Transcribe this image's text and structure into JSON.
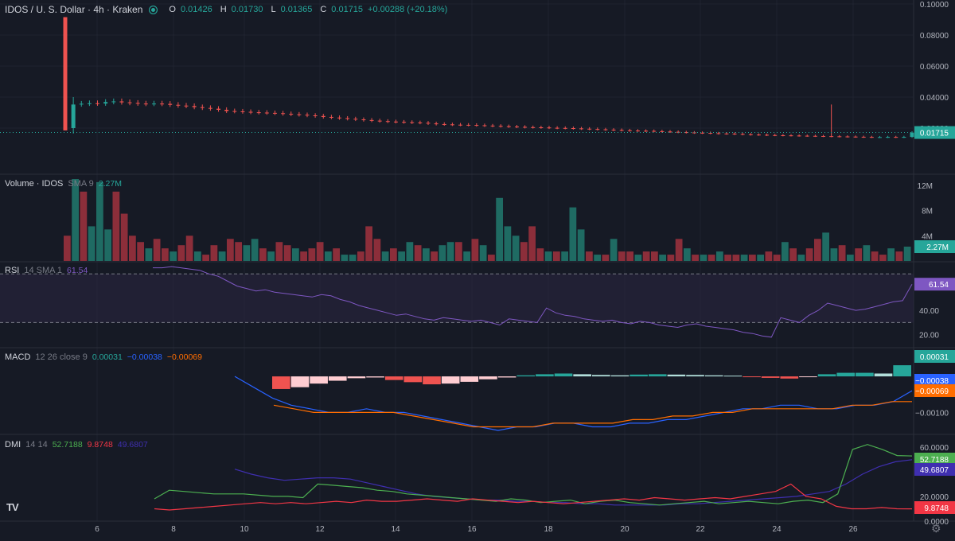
{
  "header": {
    "symbol": "IDOS / U. S. Dollar · 4h · Kraken",
    "o_key": "O",
    "o_val": "0.01426",
    "h_key": "H",
    "h_val": "0.01730",
    "l_key": "L",
    "l_val": "0.01365",
    "c_key": "C",
    "c_val": "0.01715",
    "change": "+0.00288 (+20.18%)"
  },
  "volume_legend": {
    "label": "Volume · IDOS",
    "param": "SMA 9",
    "value": "2.27M"
  },
  "rsi_legend": {
    "label": "RSI",
    "param": "14 SMA 1",
    "value": "61.54"
  },
  "macd_legend": {
    "label": "MACD",
    "param": "12 26 close 9",
    "v1": "0.00031",
    "v2": "−0.00038",
    "v3": "−0.00069"
  },
  "dmi_legend": {
    "label": "DMI",
    "param": "14 14",
    "v1": "52.7188",
    "v2": "9.8748",
    "v3": "49.6807"
  },
  "logo": "TV",
  "colors": {
    "up": "#26a69a",
    "down": "#ef5350",
    "rsi": "#7e57c2",
    "macd": "#2962ff",
    "signal": "#ff6d00",
    "plus_di": "#4caf50",
    "minus_di": "#f23645",
    "adx": "#3f2fb0"
  },
  "chart_data": [
    {
      "type": "candlestick",
      "title": "IDOS / U. S. Dollar · 4h · Kraken",
      "x_ticks": [
        "6",
        "8",
        "10",
        "12",
        "14",
        "16",
        "18",
        "20",
        "22",
        "24",
        "26"
      ],
      "y_ticks": [
        "0.10000",
        "0.08000",
        "0.06000",
        "0.04000",
        "0.02000"
      ],
      "ylim": [
        0.0,
        0.1
      ],
      "last_price": "0.01715",
      "close_series": [
        0.0185,
        0.0352,
        0.0357,
        0.036,
        0.0358,
        0.0368,
        0.0372,
        0.0366,
        0.0362,
        0.0358,
        0.0356,
        0.0358,
        0.0356,
        0.035,
        0.0345,
        0.0342,
        0.0335,
        0.033,
        0.0325,
        0.0318,
        0.031,
        0.0308,
        0.0305,
        0.0302,
        0.03,
        0.0298,
        0.0296,
        0.0292,
        0.0289,
        0.0286,
        0.0282,
        0.0278,
        0.0272,
        0.0268,
        0.0264,
        0.026,
        0.0256,
        0.0252,
        0.0248,
        0.0245,
        0.0242,
        0.024,
        0.0238,
        0.0236,
        0.0234,
        0.023,
        0.0226,
        0.0224,
        0.0222,
        0.0221,
        0.022,
        0.0218,
        0.0216,
        0.0214,
        0.0212,
        0.021,
        0.0208,
        0.0206,
        0.0205,
        0.0204,
        0.0202,
        0.0201,
        0.02,
        0.0198,
        0.0196,
        0.0194,
        0.0192,
        0.019,
        0.0188,
        0.0186,
        0.0184,
        0.0183,
        0.0182,
        0.018,
        0.0178,
        0.0176,
        0.0174,
        0.0172,
        0.017,
        0.0169,
        0.0167,
        0.0165,
        0.0164,
        0.0162,
        0.016,
        0.0158,
        0.0157,
        0.0155,
        0.0154,
        0.0153,
        0.0152,
        0.0151,
        0.015,
        0.0149,
        0.0148,
        0.0147,
        0.0146,
        0.0145,
        0.0144,
        0.0143,
        0.0142,
        0.0142,
        0.0143,
        0.0142,
        0.0143,
        0.0171
      ]
    },
    {
      "type": "bar",
      "title": "Volume · IDOS",
      "y_ticks": [
        "12M",
        "8M",
        "4M"
      ],
      "ylim": [
        0,
        13000000
      ],
      "last_value": "2.27M",
      "values": [
        4.0,
        13.0,
        11.0,
        5.5,
        12.5,
        5.0,
        11.0,
        7.5,
        4.0,
        3.0,
        2.0,
        3.5,
        2.0,
        1.5,
        2.5,
        4.0,
        1.5,
        1.0,
        2.5,
        1.5,
        3.5,
        3.0,
        2.5,
        3.5,
        2.0,
        1.5,
        3.0,
        2.5,
        2.0,
        1.5,
        2.0,
        3.0,
        1.5,
        2.0,
        1.0,
        1.0,
        1.5,
        5.5,
        3.5,
        1.5,
        2.0,
        1.5,
        3.0,
        2.5,
        2.0,
        1.5,
        2.5,
        3.0,
        3.0,
        1.5,
        3.5,
        2.5,
        1.0,
        10.0,
        5.5,
        4.0,
        3.0,
        5.5,
        2.0,
        1.5,
        1.5,
        1.5,
        8.5,
        5.0,
        1.5,
        1.0,
        1.0,
        3.5,
        1.5,
        1.5,
        1.0,
        1.5,
        1.5,
        1.0,
        1.0,
        3.5,
        2.0,
        1.0,
        1.0,
        1.0,
        1.5,
        1.0,
        1.0,
        1.0,
        1.0,
        1.0,
        1.5,
        1.0,
        3.0,
        2.0,
        1.0,
        2.0,
        3.5,
        4.5,
        2.0,
        2.5,
        1.0,
        2.0,
        2.5,
        1.5,
        1.0,
        2.0,
        1.5,
        2.27
      ],
      "up": [
        0,
        1,
        0,
        1,
        1,
        1,
        0,
        0,
        0,
        0,
        1,
        0,
        0,
        1,
        0,
        0,
        1,
        0,
        0,
        1,
        0,
        0,
        1,
        1,
        0,
        1,
        0,
        0,
        1,
        0,
        0,
        0,
        1,
        0,
        1,
        1,
        0,
        0,
        0,
        1,
        0,
        1,
        1,
        0,
        1,
        0,
        1,
        1,
        0,
        1,
        0,
        1,
        0,
        1,
        1,
        1,
        0,
        0,
        0,
        1,
        0,
        1,
        1,
        1,
        0,
        1,
        0,
        1,
        0,
        0,
        1,
        0,
        0,
        1,
        0,
        0,
        1,
        0,
        1,
        0,
        1,
        0,
        0,
        1,
        0,
        1,
        0,
        0,
        1,
        0,
        1,
        0,
        0,
        1,
        1,
        0,
        1,
        0,
        1,
        0,
        0,
        1,
        0,
        1
      ]
    },
    {
      "type": "line",
      "title": "RSI",
      "y_ticks": [
        "40.00",
        "20.00"
      ],
      "ylim": [
        10,
        80
      ],
      "last_value": "61.54",
      "values": [
        75,
        75,
        76,
        75,
        74,
        73,
        70,
        68,
        64,
        60,
        58,
        56,
        57,
        55,
        54,
        53,
        52,
        51,
        53,
        52,
        49,
        47,
        44,
        42,
        40,
        38,
        36,
        37,
        35,
        33,
        32,
        34,
        33,
        32,
        31,
        32,
        30,
        28,
        33,
        32,
        31,
        30,
        42,
        38,
        36,
        35,
        33,
        32,
        31,
        32,
        30,
        29,
        31,
        30,
        28,
        27,
        26,
        28,
        29,
        27,
        26,
        25,
        24,
        22,
        21,
        19,
        18,
        34,
        32,
        30,
        36,
        40,
        46,
        44,
        42,
        40,
        41,
        43,
        45,
        47,
        48,
        61.54
      ]
    },
    {
      "type": "line",
      "title": "MACD",
      "y_ticks": [
        "0.00000",
        "-0.00100"
      ],
      "ylim": [
        -0.0015,
        0.0004
      ],
      "series": [
        {
          "name": "MACD",
          "values": [
            0.0,
            -0.0003,
            -0.0006,
            -0.0008,
            -0.0009,
            -0.001,
            -0.001,
            -0.0009,
            -0.001,
            -0.001,
            -0.0011,
            -0.0012,
            -0.0013,
            -0.0014,
            -0.0015,
            -0.0014,
            -0.0014,
            -0.0013,
            -0.0013,
            -0.0014,
            -0.0014,
            -0.0013,
            -0.0013,
            -0.0012,
            -0.0012,
            -0.0011,
            -0.001,
            -0.0009,
            -0.0009,
            -0.0008,
            -0.0008,
            -0.0009,
            -0.0009,
            -0.0008,
            -0.0008,
            -0.0007,
            -0.0004
          ]
        },
        {
          "name": "Signal",
          "values": [
            -0.0008,
            -0.0009,
            -0.001,
            -0.001,
            -0.001,
            -0.001,
            -0.001,
            -0.0011,
            -0.0012,
            -0.0013,
            -0.0014,
            -0.0014,
            -0.0014,
            -0.0014,
            -0.0013,
            -0.0013,
            -0.0013,
            -0.0013,
            -0.0012,
            -0.0012,
            -0.0011,
            -0.0011,
            -0.001,
            -0.001,
            -0.0009,
            -0.0009,
            -0.0009,
            -0.0009,
            -0.0009,
            -0.0008,
            -0.0008,
            -0.0007,
            -0.0007
          ]
        },
        {
          "name": "Histogram",
          "values": [
            -0.00035,
            -0.0003,
            -0.0002,
            -0.00012,
            -5e-05,
            -3e-05,
            -0.0001,
            -0.00016,
            -0.00022,
            -0.0002,
            -0.00015,
            -8e-05,
            -3e-05,
            3e-05,
            6e-05,
            8e-05,
            6e-05,
            4e-05,
            3e-05,
            5e-05,
            6e-05,
            5e-05,
            4e-05,
            3e-05,
            2e-05,
            -2e-05,
            -4e-05,
            -6e-05,
            -2e-05,
            6e-05,
            0.0001,
            0.0001,
            8e-05,
            0.00031
          ]
        }
      ]
    },
    {
      "type": "line",
      "title": "DMI",
      "y_ticks": [
        "60.0000",
        "40.0000",
        "20.0000",
        "0.0000"
      ],
      "ylim": [
        0,
        65
      ],
      "series": [
        {
          "name": "+DI",
          "values": [
            18,
            25,
            24,
            23,
            22,
            22,
            22,
            21,
            20,
            20,
            19,
            30,
            29,
            28,
            27,
            25,
            24,
            22,
            21,
            20,
            19,
            18,
            17,
            16,
            18,
            17,
            15,
            16,
            17,
            14,
            16,
            17,
            15,
            14,
            13,
            14,
            15,
            16,
            14,
            15,
            16,
            15,
            14,
            16,
            17,
            15,
            22,
            58,
            62,
            58,
            53,
            52.7
          ]
        },
        {
          "name": "-DI",
          "values": [
            10,
            9,
            10,
            11,
            12,
            13,
            14,
            15,
            14,
            15,
            14,
            15,
            16,
            15,
            17,
            16,
            16,
            17,
            18,
            17,
            16,
            18,
            17,
            16,
            15,
            16,
            15,
            14,
            15,
            16,
            17,
            18,
            17,
            19,
            18,
            17,
            18,
            19,
            18,
            20,
            22,
            24,
            30,
            20,
            18,
            12,
            10,
            10,
            11,
            10,
            9.9
          ]
        },
        {
          "name": "ADX",
          "values": [
            42,
            38,
            35,
            33,
            34,
            35,
            35,
            34,
            31,
            28,
            25,
            22,
            20,
            19,
            18,
            17,
            17,
            16,
            16,
            15,
            15,
            14,
            14,
            13,
            13,
            13,
            13,
            14,
            14,
            15,
            16,
            17,
            18,
            19,
            20,
            22,
            24,
            30,
            38,
            44,
            48,
            49.7
          ]
        }
      ]
    }
  ]
}
